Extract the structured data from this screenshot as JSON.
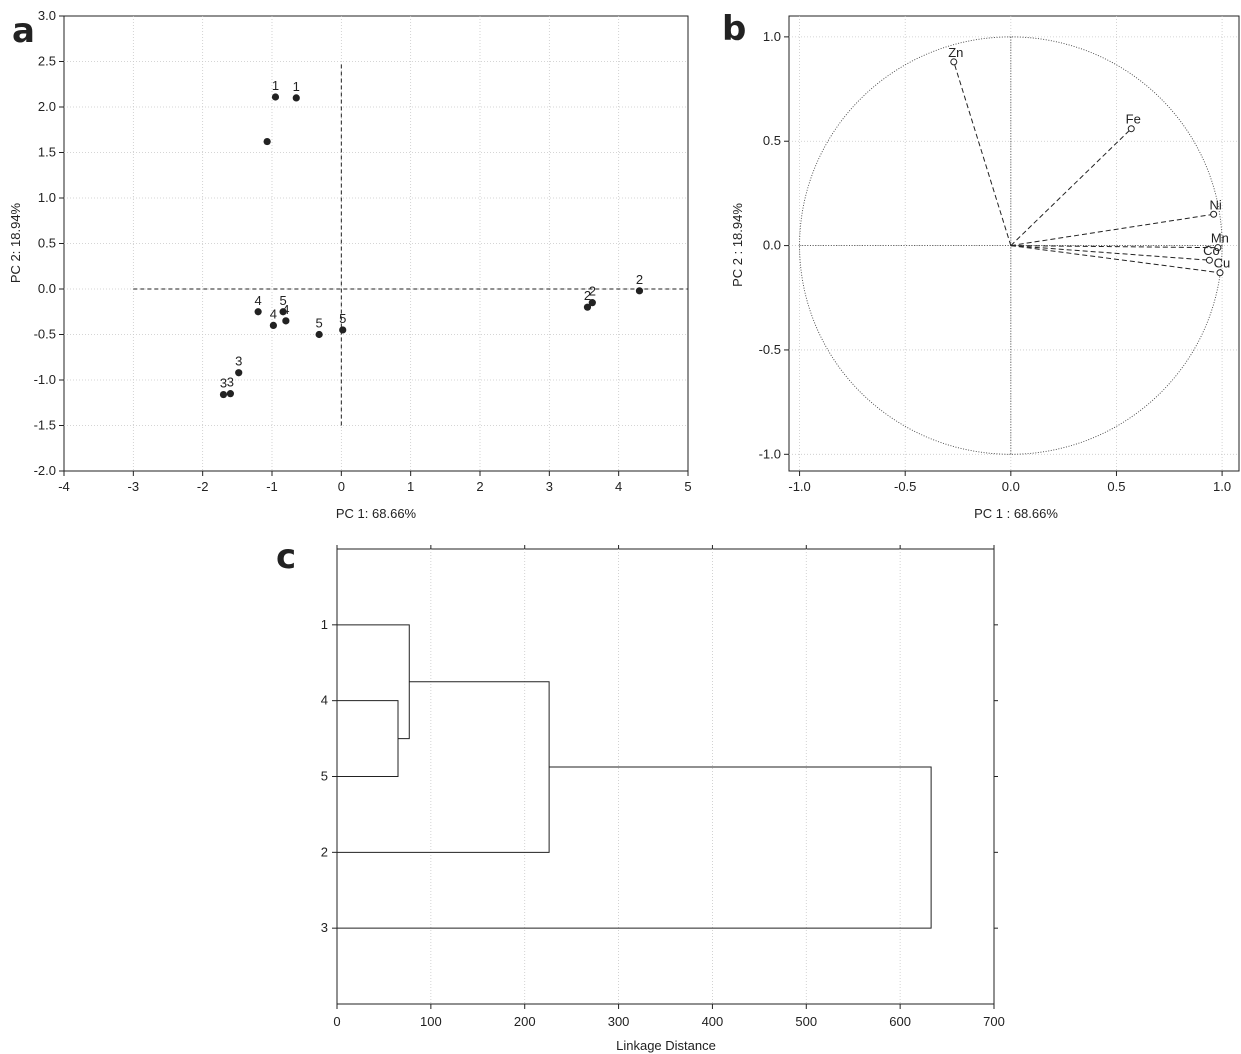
{
  "chart_data": [
    {
      "panel": "a",
      "type": "scatter",
      "xlabel": "PC 1: 68.66%",
      "ylabel": "PC 2: 18.94%",
      "xlim": [
        -4,
        5
      ],
      "ylim": [
        -2.0,
        3.0
      ],
      "xticks": [
        "-4",
        "-3",
        "-2",
        "-1",
        "0",
        "1",
        "2",
        "3",
        "4",
        "5"
      ],
      "yticks": [
        "3.0",
        "2.5",
        "2.0",
        "1.5",
        "1.0",
        "0.5",
        "0.0",
        "-0.5",
        "-1.0",
        "-1.5",
        "-2.0"
      ],
      "grid": true,
      "guides": {
        "h": {
          "y": 0,
          "x": [
            -3,
            5
          ]
        },
        "v": {
          "x": 0,
          "y": [
            -1.5,
            2.5
          ]
        }
      },
      "points": [
        {
          "x": -0.95,
          "y": 2.11,
          "label": "1"
        },
        {
          "x": -0.65,
          "y": 2.1,
          "label": "1"
        },
        {
          "x": -1.07,
          "y": 1.62,
          "label": ""
        },
        {
          "x": 4.3,
          "y": -0.02,
          "label": "2"
        },
        {
          "x": 3.62,
          "y": -0.15,
          "label": "2"
        },
        {
          "x": 3.55,
          "y": -0.2,
          "label": "2"
        },
        {
          "x": -1.48,
          "y": -0.92,
          "label": "3"
        },
        {
          "x": -1.6,
          "y": -1.15,
          "label": "3"
        },
        {
          "x": -1.7,
          "y": -1.16,
          "label": "3"
        },
        {
          "x": -1.2,
          "y": -0.25,
          "label": "4"
        },
        {
          "x": -0.98,
          "y": -0.4,
          "label": "4"
        },
        {
          "x": -0.8,
          "y": -0.35,
          "label": "4"
        },
        {
          "x": -0.84,
          "y": -0.25,
          "label": "5"
        },
        {
          "x": -0.32,
          "y": -0.5,
          "label": "5"
        },
        {
          "x": 0.02,
          "y": -0.45,
          "label": "5"
        }
      ]
    },
    {
      "panel": "b",
      "type": "scatter",
      "subtype": "loading-circle",
      "xlabel": "PC 1 : 68.66%",
      "ylabel": "PC 2 : 18.94%",
      "xlim": [
        -1.05,
        1.08
      ],
      "ylim": [
        -1.08,
        1.1
      ],
      "xticks": [
        -1.0,
        -0.5,
        0.0,
        0.5,
        1.0
      ],
      "xticklabels": [
        "-1.0",
        "-0.5",
        "0.0",
        "0.5",
        "1.0"
      ],
      "yticks": [
        1.0,
        0.5,
        0.0,
        -0.5,
        -1.0
      ],
      "yticklabels": [
        "1.0",
        "0.5",
        "0.0",
        "-0.5",
        "-1.0"
      ],
      "grid": true,
      "unit_circle": true,
      "vectors": [
        {
          "name": "Zn",
          "x": -0.27,
          "y": 0.88
        },
        {
          "name": "Fe",
          "x": 0.57,
          "y": 0.56
        },
        {
          "name": "Ni",
          "x": 0.96,
          "y": 0.15
        },
        {
          "name": "Mn",
          "x": 0.98,
          "y": -0.01
        },
        {
          "name": "Co",
          "x": 0.94,
          "y": -0.07
        },
        {
          "name": "Cu",
          "x": 0.99,
          "y": -0.13
        }
      ]
    },
    {
      "panel": "c",
      "type": "dendrogram",
      "xlabel": "Linkage Distance",
      "xlim": [
        0,
        700
      ],
      "xticks": [
        "0",
        "100",
        "200",
        "300",
        "400",
        "500",
        "600",
        "700"
      ],
      "leaves": [
        "1",
        "4",
        "5",
        "2",
        "3"
      ],
      "merges": [
        {
          "children": [
            "4",
            "5"
          ],
          "height": 65
        },
        {
          "children": [
            "1",
            "4+5"
          ],
          "height": 77
        },
        {
          "children": [
            "1+4+5",
            "2"
          ],
          "height": 226
        },
        {
          "children": [
            "1+2+4+5",
            "3"
          ],
          "height": 633
        }
      ]
    }
  ]
}
